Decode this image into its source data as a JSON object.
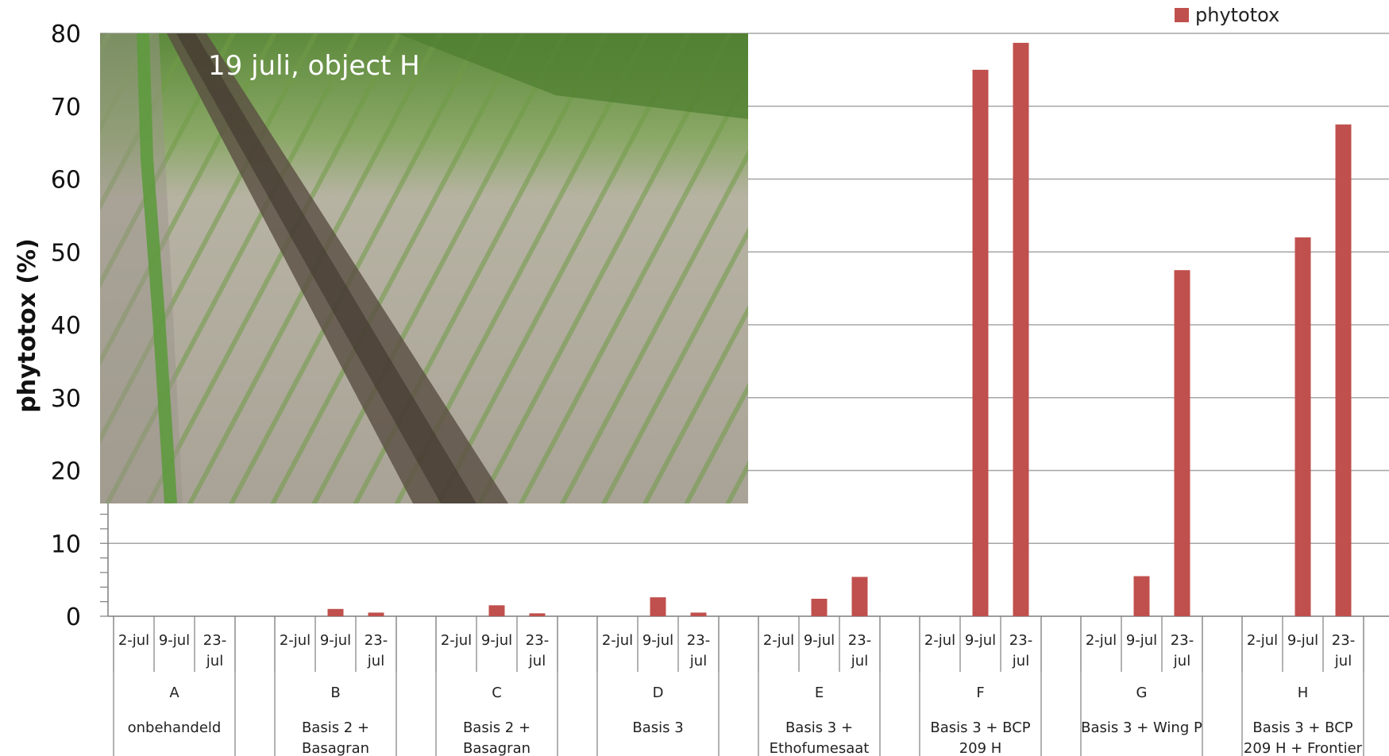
{
  "photo": {
    "caption": "19 juli, object H"
  },
  "colors": {
    "bar": "#c0504d",
    "grid": "#a6a6a6",
    "axis": "#7f7f7f"
  },
  "chart_data": {
    "type": "bar",
    "ylabel": "phytotox (%)",
    "ylim": [
      0,
      80
    ],
    "yticks": [
      0,
      10,
      20,
      30,
      40,
      50,
      60,
      70,
      80
    ],
    "legend": {
      "position": "top-right",
      "entries": [
        "phytotox"
      ]
    },
    "series": [
      {
        "name": "phytotox",
        "groups": [
          {
            "letter": "A",
            "treatment": [
              "onbehandeld"
            ],
            "dates": [
              "2-jul",
              "9-jul",
              "23-jul"
            ],
            "values": [
              0,
              0,
              0
            ]
          },
          {
            "letter": "B",
            "treatment": [
              "Basis 2 +",
              "Basagran"
            ],
            "dates": [
              "2-jul",
              "9-jul",
              "23-jul"
            ],
            "values": [
              0,
              1,
              0.5
            ]
          },
          {
            "letter": "C",
            "treatment": [
              "Basis 2 +",
              "Basagran"
            ],
            "dates": [
              "2-jul",
              "9-jul",
              "23-jul"
            ],
            "values": [
              0,
              1.5,
              0.4
            ]
          },
          {
            "letter": "D",
            "treatment": [
              "Basis 3"
            ],
            "dates": [
              "2-jul",
              "9-jul",
              "23-jul"
            ],
            "values": [
              0,
              2.6,
              0.5
            ]
          },
          {
            "letter": "E",
            "treatment": [
              "Basis 3 +",
              "Ethofumesaat"
            ],
            "dates": [
              "2-jul",
              "9-jul",
              "23-jul"
            ],
            "values": [
              0,
              2.4,
              5.4
            ]
          },
          {
            "letter": "F",
            "treatment": [
              "Basis 3 + BCP",
              "209 H"
            ],
            "dates": [
              "2-jul",
              "9-jul",
              "23-jul"
            ],
            "values": [
              0,
              75,
              78.7
            ]
          },
          {
            "letter": "G",
            "treatment": [
              "Basis 3 + Wing P"
            ],
            "dates": [
              "2-jul",
              "9-jul",
              "23-jul"
            ],
            "values": [
              0,
              5.5,
              47.5
            ]
          },
          {
            "letter": "H",
            "treatment": [
              "Basis 3 + BCP",
              "209 H + Frontier"
            ],
            "dates": [
              "2-jul",
              "9-jul",
              "23-jul"
            ],
            "values": [
              0,
              52,
              67.5
            ]
          }
        ]
      }
    ]
  }
}
